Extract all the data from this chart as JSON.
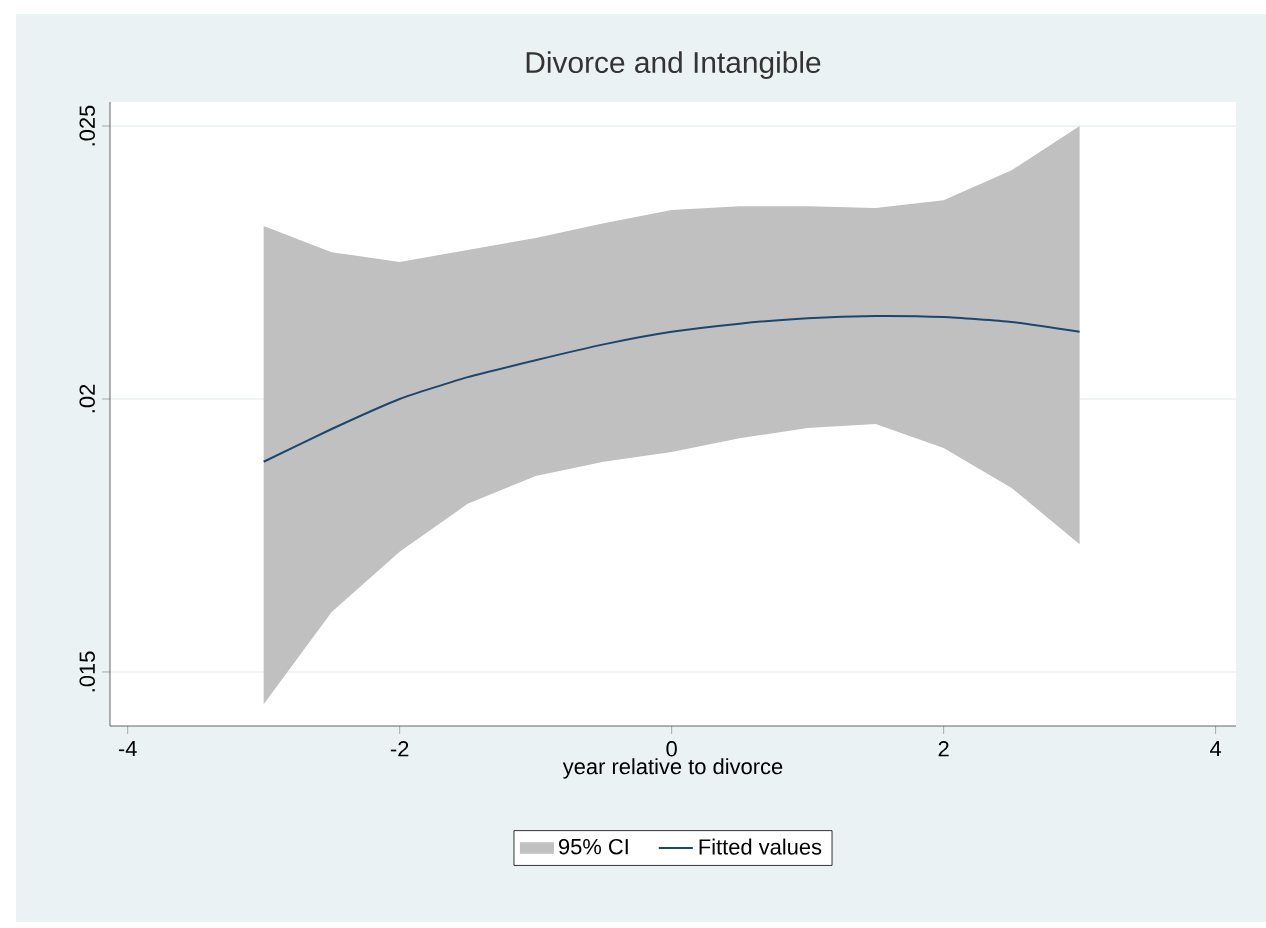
{
  "chart_data": {
    "type": "line",
    "title": "Divorce and Intangible",
    "xlabel": "year relative to divorce",
    "xlim": [
      -4.13,
      4.15
    ],
    "ylim": [
      0.01401,
      0.02544
    ],
    "xticks": [
      -4,
      -2,
      0,
      2,
      4
    ],
    "yticks": [
      {
        "value": 0.015,
        "label": ".015"
      },
      {
        "value": 0.02,
        "label": ".02"
      },
      {
        "value": 0.025,
        "label": ".025"
      }
    ],
    "grid": "y",
    "legend": "bottom",
    "annotations": [
      "95% CI"
    ],
    "series": [
      {
        "name": "Fitted values",
        "color": "#1a476f",
        "x": [
          -3,
          -2.5,
          -2,
          -1.5,
          -1,
          -0.5,
          0,
          0.5,
          1,
          1.5,
          2,
          2.5,
          3
        ],
        "values": [
          0.01885,
          0.01945,
          0.02,
          0.0204,
          0.02071,
          0.021,
          0.02123,
          0.02138,
          0.02148,
          0.02152,
          0.0215,
          0.02141,
          0.02123
        ],
        "upper": [
          0.02317,
          0.02269,
          0.02251,
          0.02273,
          0.02295,
          0.02322,
          0.02346,
          0.02353,
          0.02353,
          0.0235,
          0.02364,
          0.02419,
          0.025
        ],
        "lower": [
          0.01441,
          0.0161,
          0.0172,
          0.01808,
          0.01859,
          0.01885,
          0.01903,
          0.01928,
          0.01947,
          0.01954,
          0.0191,
          0.01837,
          0.01734
        ]
      }
    ]
  }
}
